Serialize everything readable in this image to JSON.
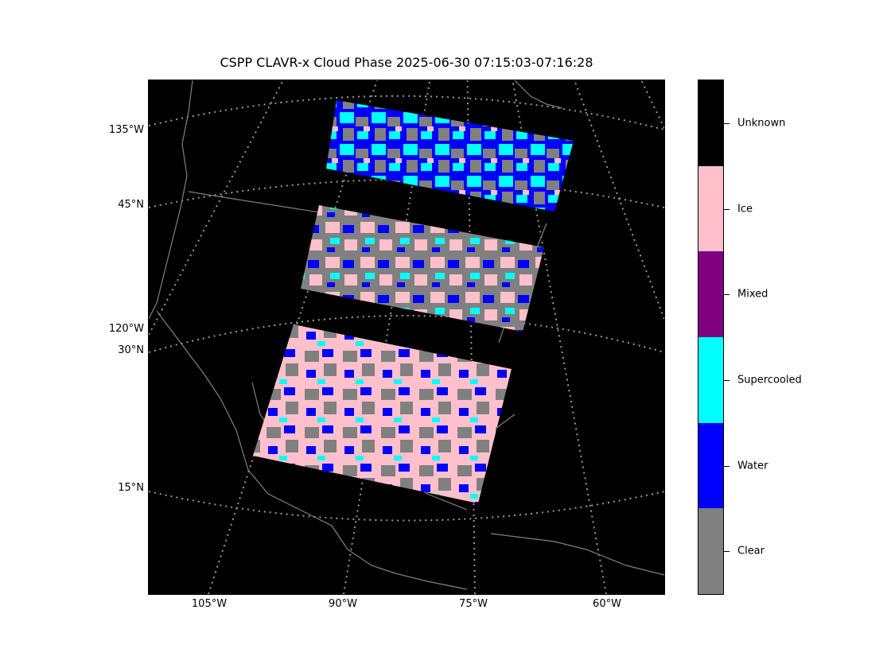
{
  "title": "CSPP CLAVR-x Cloud Phase 2025-06-30 07:15:03-07:16:28",
  "map": {
    "projection": "lambert-conformal",
    "background_color": "#000000",
    "coastline_color": "#808080",
    "gridline_color": "#999999",
    "longitude_labels_bottom": [
      "105°W",
      "90°W",
      "75°W",
      "60°W"
    ],
    "longitude_labels_left": [
      "135°W",
      "120°W"
    ],
    "latitude_labels_left": [
      "45°N",
      "30°N",
      "15°N"
    ]
  },
  "swath_granules": [
    {
      "name": "granule-north"
    },
    {
      "name": "granule-middle"
    },
    {
      "name": "granule-south"
    }
  ],
  "colorbar": {
    "categories": [
      {
        "label": "Unknown",
        "color": "#000000"
      },
      {
        "label": "Ice",
        "color": "#ffc0cb"
      },
      {
        "label": "Mixed",
        "color": "#800080"
      },
      {
        "label": "Supercooled",
        "color": "#00ffff"
      },
      {
        "label": "Water",
        "color": "#0000ff"
      },
      {
        "label": "Clear",
        "color": "#808080"
      }
    ]
  }
}
